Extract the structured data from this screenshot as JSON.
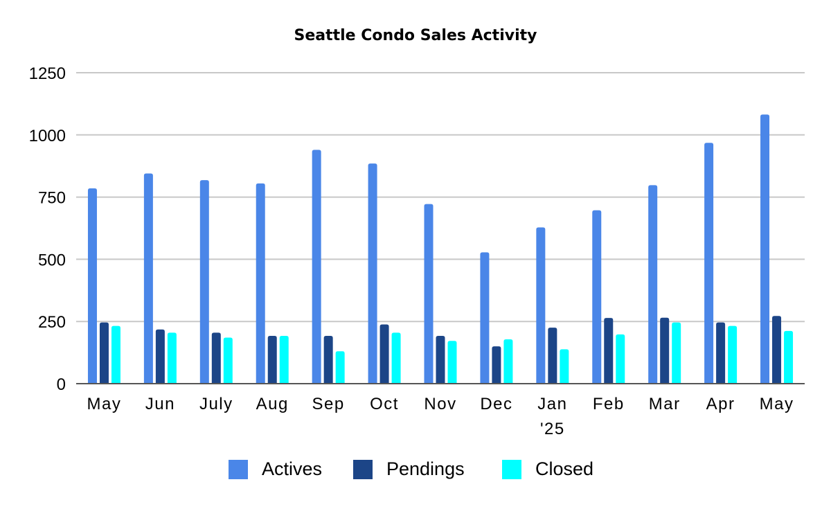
{
  "chart_data": {
    "type": "bar",
    "title": "Seattle Condo Sales Activity",
    "categories": [
      [
        "May"
      ],
      [
        "Jun"
      ],
      [
        "July"
      ],
      [
        "Aug"
      ],
      [
        "Sep"
      ],
      [
        "Oct"
      ],
      [
        "Nov"
      ],
      [
        "Dec"
      ],
      [
        "Jan",
        "'25"
      ],
      [
        "Feb"
      ],
      [
        "Mar"
      ],
      [
        "Apr"
      ],
      [
        "May"
      ]
    ],
    "series": [
      {
        "name": "Actives",
        "color": "#4a86e8",
        "values": [
          785,
          845,
          818,
          805,
          940,
          885,
          722,
          528,
          628,
          697,
          798,
          968,
          1082
        ]
      },
      {
        "name": "Pendings",
        "color": "#1c4587",
        "values": [
          246,
          218,
          205,
          192,
          192,
          238,
          192,
          150,
          225,
          264,
          265,
          246,
          272
        ]
      },
      {
        "name": "Closed",
        "color": "#00ffff",
        "values": [
          232,
          205,
          185,
          192,
          130,
          205,
          172,
          178,
          138,
          198,
          246,
          232,
          212
        ]
      }
    ],
    "yticks": [
      0,
      250,
      500,
      750,
      1000,
      1250
    ],
    "ylim": [
      0,
      1250
    ],
    "grid": true,
    "legend": "bottom"
  }
}
